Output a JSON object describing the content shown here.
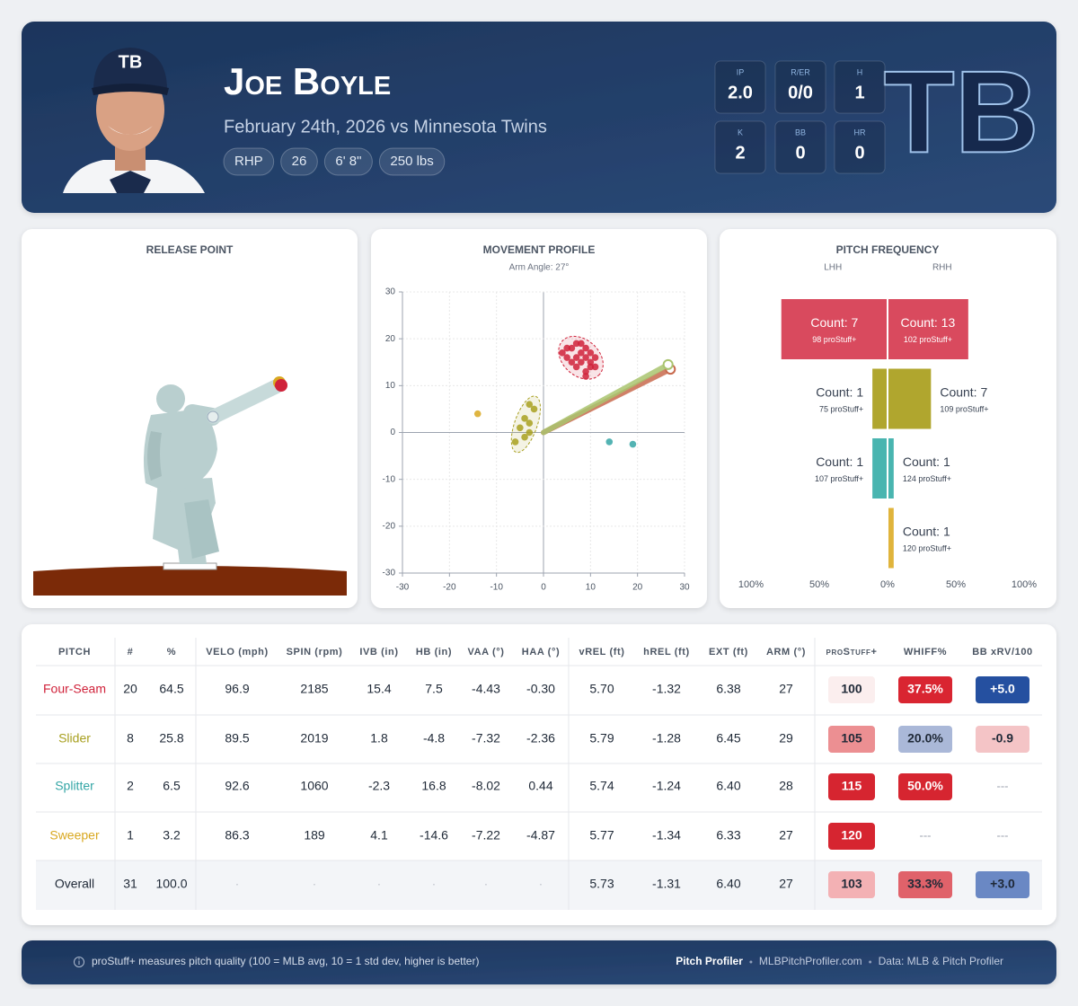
{
  "header": {
    "name": "Joe Boyle",
    "subtitle": "February 24th, 2026 vs Minnesota Twins",
    "tags": [
      "RHP",
      "26",
      "6' 8\"",
      "250 lbs"
    ],
    "logo": "TB",
    "cap_logo": "TB"
  },
  "stats": [
    {
      "label": "IP",
      "value": "2.0"
    },
    {
      "label": "R/ER",
      "value": "0/0"
    },
    {
      "label": "H",
      "value": "1"
    },
    {
      "label": "K",
      "value": "2"
    },
    {
      "label": "BB",
      "value": "0"
    },
    {
      "label": "HR",
      "value": "0"
    }
  ],
  "release_point": {
    "title": "RELEASE POINT"
  },
  "chart_data": [
    {
      "type": "scatter",
      "title": "MOVEMENT PROFILE",
      "subtitle": "Arm Angle: 27°",
      "xlim": [
        -30,
        30
      ],
      "ylim": [
        -30,
        30
      ],
      "xticks": [
        -30,
        -20,
        -10,
        0,
        10,
        20,
        30
      ],
      "yticks": [
        -30,
        -20,
        -10,
        0,
        10,
        20,
        30
      ],
      "grid": true,
      "series": [
        {
          "color": "#d0223a",
          "x": [
            4,
            5,
            6,
            7,
            7,
            8,
            8,
            9,
            9,
            10,
            10,
            11,
            6,
            7,
            9,
            10,
            8,
            11,
            5,
            9
          ],
          "y": [
            17,
            16,
            18,
            19,
            16,
            15,
            17,
            16,
            18,
            15,
            17,
            16,
            15,
            14,
            13,
            14,
            19,
            14,
            18,
            12
          ]
        },
        {
          "color": "#a8a020",
          "x": [
            -3,
            -2,
            -4,
            -3,
            -5,
            -4,
            -6,
            -3
          ],
          "y": [
            6,
            5,
            3,
            2,
            1,
            -1,
            -2,
            0
          ]
        },
        {
          "color": "#35a6a6",
          "x": [
            14,
            19
          ],
          "y": [
            -2,
            -2.5
          ]
        },
        {
          "color": "#d9a820",
          "x": [
            -14
          ],
          "y": [
            4
          ]
        }
      ],
      "arm_lines": [
        {
          "color": "#c86a4e",
          "x": 27,
          "y": 13.5
        },
        {
          "color": "#a9c46f",
          "x": 26.5,
          "y": 14.5
        }
      ]
    },
    {
      "type": "butterfly",
      "title": "PITCH FREQUENCY",
      "colors": [
        "#d94a5e",
        "#b0a62e",
        "#49b5b0",
        "#e0b43c"
      ],
      "xlim": [
        -100,
        100
      ],
      "xticks": [
        {
          "value": -100,
          "label": "100%"
        },
        {
          "value": -50,
          "label": "50%"
        },
        {
          "value": 0,
          "label": "0%"
        },
        {
          "value": 50,
          "label": "50%"
        },
        {
          "value": 100,
          "label": "100%"
        }
      ],
      "series": [
        {
          "name": "LHH",
          "values": [
            77.8,
            11.1,
            11.1,
            null
          ],
          "count_labels": [
            "Count: 7",
            "Count: 1",
            "Count: 1",
            null
          ],
          "stuff_labels": [
            "98 proStuff+",
            "75 proStuff+",
            "107 proStuff+",
            null
          ]
        },
        {
          "name": "RHH",
          "values": [
            59.1,
            31.8,
            4.5,
            4.5
          ],
          "count_labels": [
            "Count: 13",
            "Count: 7",
            "Count: 1",
            "Count: 1"
          ],
          "stuff_labels": [
            "102 proStuff+",
            "109 proStuff+",
            "124 proStuff+",
            "120 proStuff+"
          ]
        }
      ]
    }
  ],
  "table": {
    "columns": [
      "PITCH",
      "#",
      "%",
      "VELO (mph)",
      "SPIN (rpm)",
      "IVB (in)",
      "HB (in)",
      "VAA (°)",
      "HAA (°)",
      "vREL (ft)",
      "hREL (ft)",
      "EXT (ft)",
      "ARM (°)",
      "proStuff+",
      "WHIFF%",
      "BB xRV/100"
    ],
    "rows": [
      [
        "Four-Seam",
        "20",
        "64.5",
        "96.9",
        "2185",
        "15.4",
        "7.5",
        "-4.43",
        "-0.30",
        "5.70",
        "-1.32",
        "6.38",
        "27",
        "100",
        "37.5%",
        "+5.0"
      ],
      [
        "Slider",
        "8",
        "25.8",
        "89.5",
        "2019",
        "1.8",
        "-4.8",
        "-7.32",
        "-2.36",
        "5.79",
        "-1.28",
        "6.45",
        "29",
        "105",
        "20.0%",
        "-0.9"
      ],
      [
        "Splitter",
        "2",
        "6.5",
        "92.6",
        "1060",
        "-2.3",
        "16.8",
        "-8.02",
        "0.44",
        "5.74",
        "-1.24",
        "6.40",
        "28",
        "115",
        "50.0%",
        "---"
      ],
      [
        "Sweeper",
        "1",
        "3.2",
        "86.3",
        "189",
        "4.1",
        "-14.6",
        "-7.22",
        "-4.87",
        "5.77",
        "-1.34",
        "6.33",
        "27",
        "120",
        "---",
        "---"
      ],
      [
        "Overall",
        "31",
        "100.0",
        "·",
        "·",
        "·",
        "·",
        "·",
        "·",
        "5.73",
        "-1.31",
        "6.40",
        "27",
        "103",
        "33.3%",
        "+3.0"
      ]
    ],
    "pitch_colors": [
      "#d0223a",
      "#a8a020",
      "#35a6a6",
      "#d9a820",
      "#1f2937"
    ],
    "badges": [
      [
        {
          "bg": "#fbeeee",
          "fg": "#1f2937"
        },
        {
          "bg": "#d92531",
          "fg": "#ffffff"
        },
        {
          "bg": "#2550a0",
          "fg": "#ffffff"
        }
      ],
      [
        {
          "bg": "#ec8f92",
          "fg": "#1f2937"
        },
        {
          "bg": "#aab8d8",
          "fg": "#1f2937"
        },
        {
          "bg": "#f4c4c6",
          "fg": "#1f2937"
        }
      ],
      [
        {
          "bg": "#d62530",
          "fg": "#ffffff"
        },
        {
          "bg": "#d62530",
          "fg": "#ffffff"
        },
        null
      ],
      [
        {
          "bg": "#d62530",
          "fg": "#ffffff"
        },
        null,
        null
      ],
      [
        {
          "bg": "#f3b1b4",
          "fg": "#1f2937"
        },
        {
          "bg": "#e0626a",
          "fg": "#1f2937"
        },
        {
          "bg": "#6a88c4",
          "fg": "#1f2937"
        }
      ]
    ]
  },
  "footer": {
    "note": "proStuff+ measures pitch quality (100 = MLB avg, 10 = 1 std dev, higher is better)",
    "brand": "Pitch Profiler",
    "site": "MLBPitchProfiler.com",
    "source": "Data: MLB & Pitch Profiler"
  }
}
